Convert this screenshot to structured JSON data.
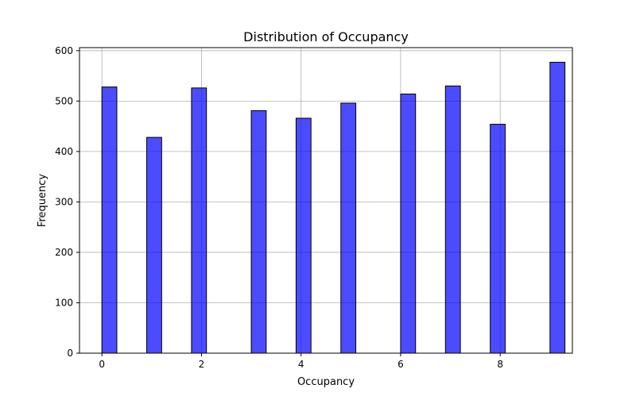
{
  "chart_data": {
    "type": "bar",
    "title": "Distribution of Occupancy",
    "xlabel": "Occupancy",
    "ylabel": "Frequency",
    "xlim": [
      -0.45,
      9.45
    ],
    "ylim": [
      0,
      606
    ],
    "x_ticks": [
      0,
      2,
      4,
      6,
      8
    ],
    "y_ticks": [
      0,
      100,
      200,
      300,
      400,
      500,
      600
    ],
    "grid": true,
    "bin_width": 0.3,
    "bins": [
      {
        "x": 0,
        "value": 528
      },
      {
        "x": 0.9,
        "value": 428
      },
      {
        "x": 1.8,
        "value": 526
      },
      {
        "x": 3,
        "value": 481
      },
      {
        "x": 3.9,
        "value": 466
      },
      {
        "x": 4.8,
        "value": 496
      },
      {
        "x": 6,
        "value": 514
      },
      {
        "x": 6.9,
        "value": 530
      },
      {
        "x": 7.8,
        "value": 454
      },
      {
        "x": 9,
        "value": 577
      }
    ],
    "colors": {
      "bar_fill": "#0000ff",
      "bar_opacity": 0.7,
      "bar_edge": "#000000",
      "grid": "#b0b0b0",
      "axis": "#000000"
    }
  }
}
